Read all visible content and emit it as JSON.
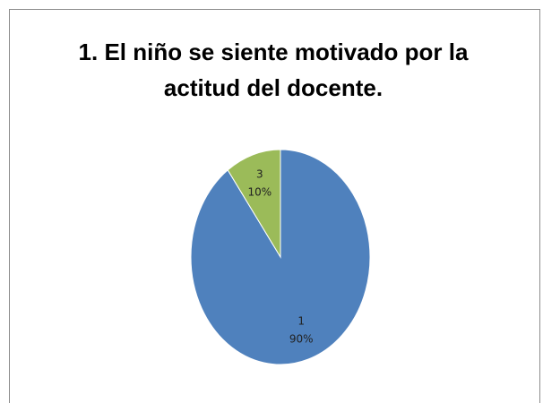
{
  "chart_data": {
    "type": "pie",
    "title": "1. El niño se siente motivado por la actitud del docente.",
    "categories": [
      "1",
      "3"
    ],
    "values": [
      90,
      10
    ],
    "value_labels": [
      "90%",
      "10%"
    ],
    "colors": [
      "#4f81bd",
      "#9bbb59"
    ]
  }
}
